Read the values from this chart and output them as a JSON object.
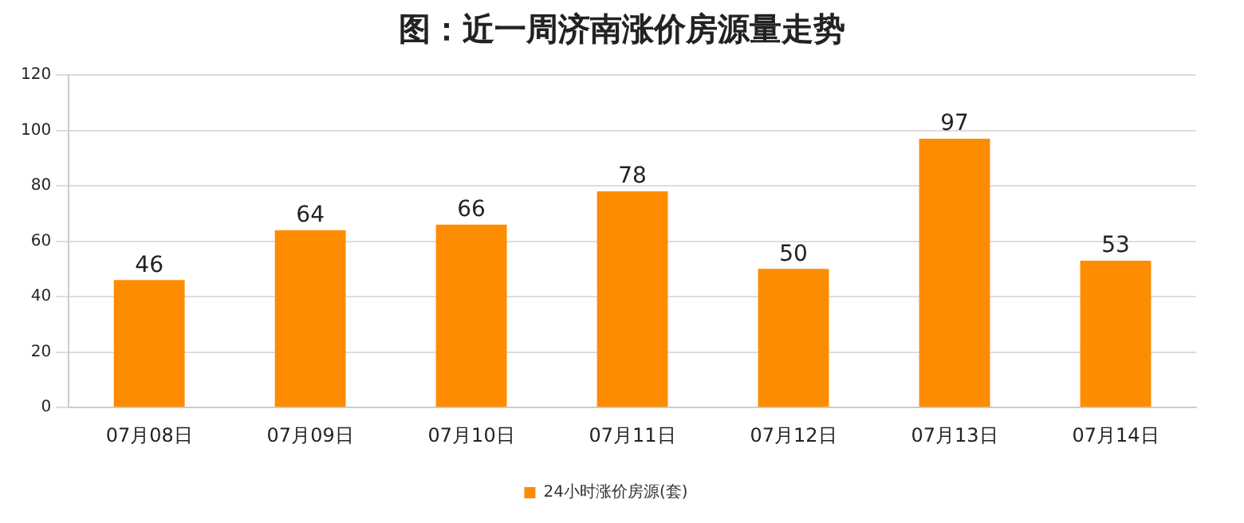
{
  "chart_data": {
    "type": "bar",
    "title": "图：近一周济南涨价房源量走势",
    "categories": [
      "07月08日",
      "07月09日",
      "07月10日",
      "07月11日",
      "07月12日",
      "07月13日",
      "07月14日"
    ],
    "series": [
      {
        "name": "24小时涨价房源(套)",
        "color": "#fe8c00",
        "values": [
          46,
          64,
          66,
          78,
          50,
          97,
          53
        ]
      }
    ],
    "ylim": [
      0,
      120
    ],
    "yticks": [
      0,
      20,
      40,
      60,
      80,
      100,
      120
    ],
    "grid": "y",
    "legend": "bottom",
    "data_labels": true
  }
}
